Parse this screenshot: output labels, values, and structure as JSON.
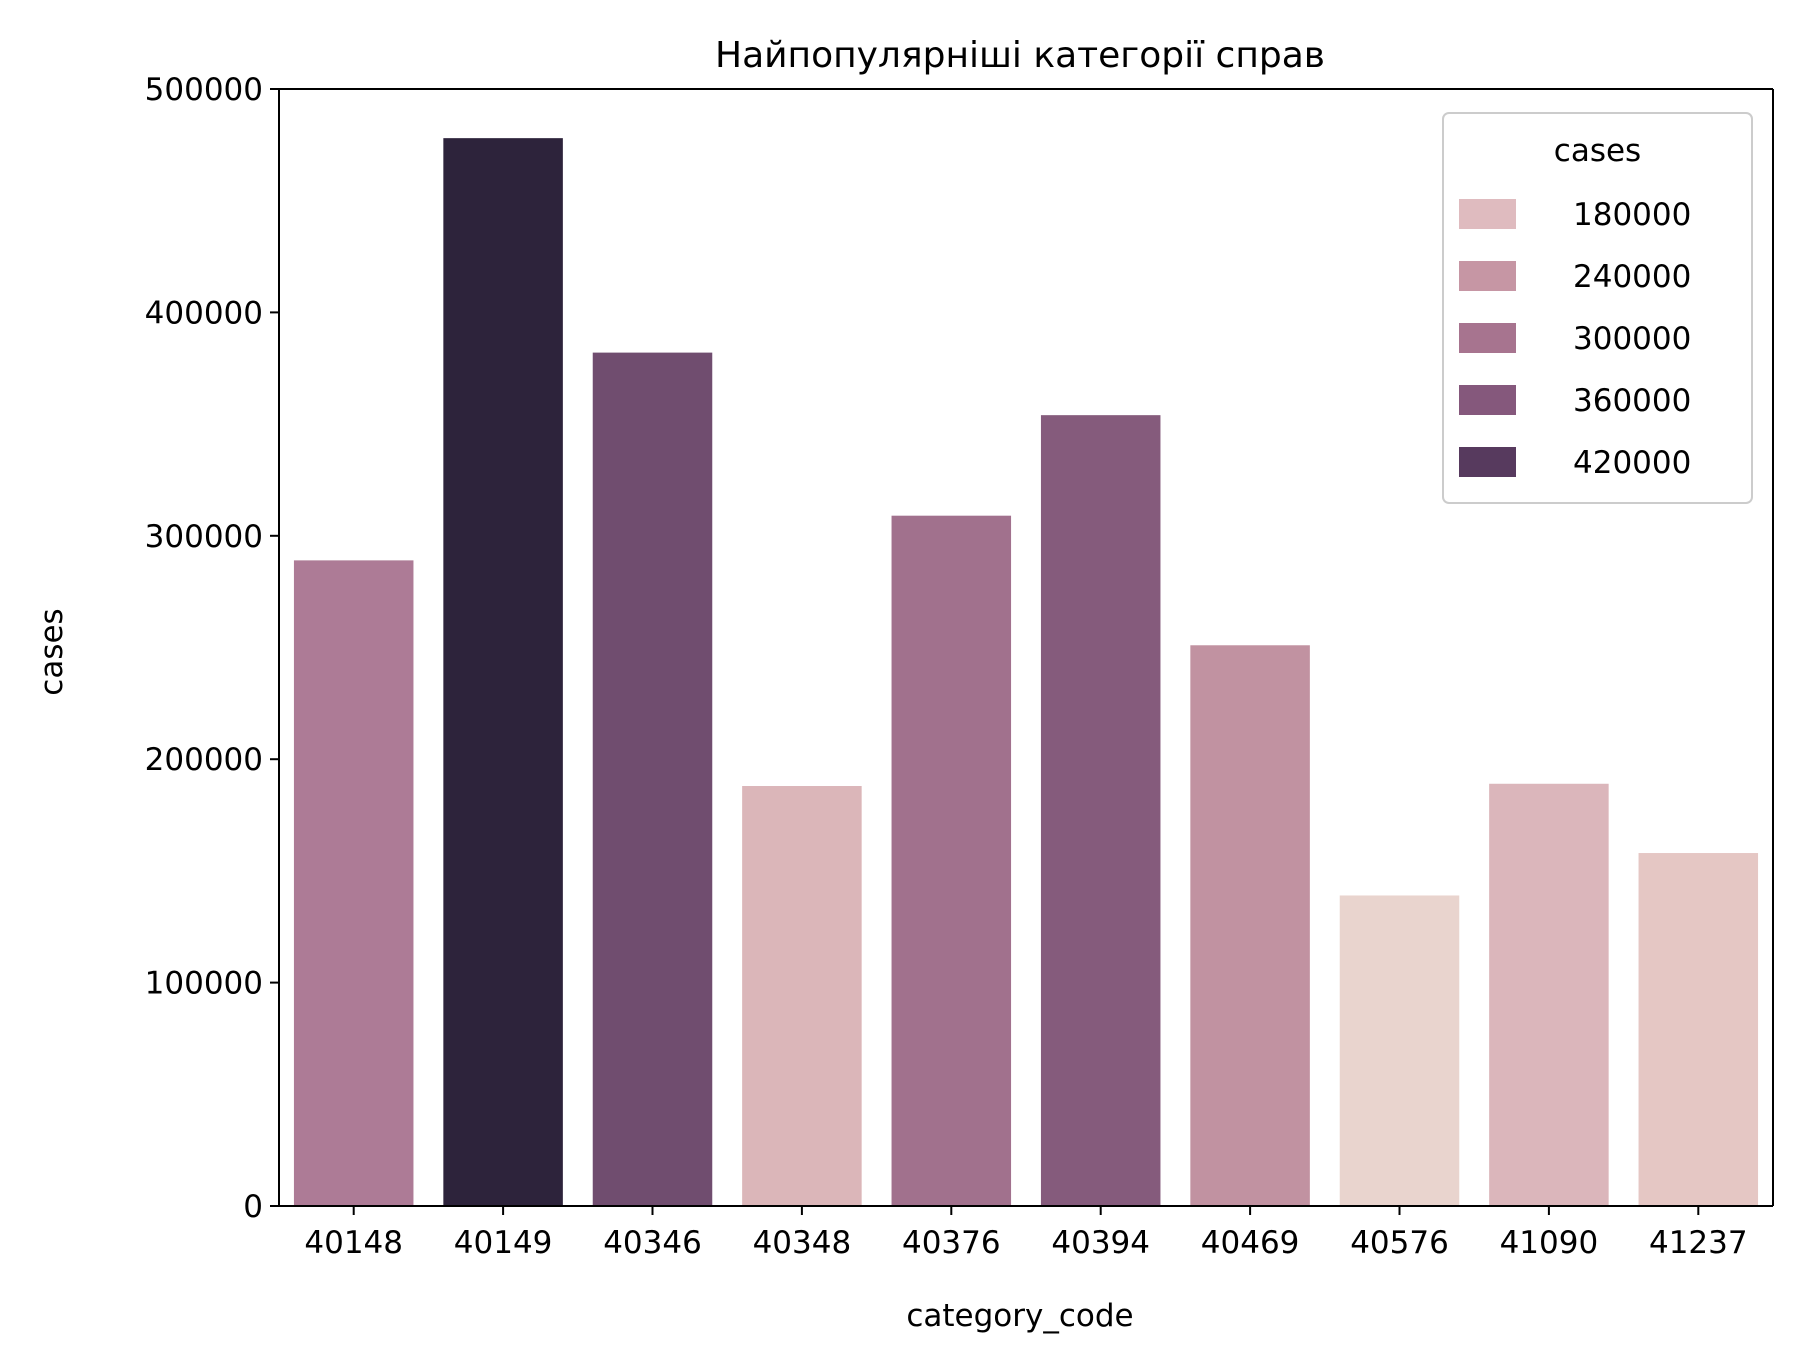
{
  "chart_data": {
    "type": "bar",
    "title": "Найпопулярніші категорії справ",
    "xlabel": "category_code",
    "ylabel": "cases",
    "categories": [
      "40148",
      "40149",
      "40346",
      "40348",
      "40376",
      "40394",
      "40469",
      "40576",
      "41090",
      "41237"
    ],
    "values": [
      289000,
      478000,
      382000,
      188000,
      309000,
      354000,
      251000,
      139000,
      189000,
      158000
    ],
    "ylim": [
      0,
      500000
    ],
    "yticks": [
      0,
      100000,
      200000,
      300000,
      400000,
      500000
    ],
    "ytick_labels": [
      "0",
      "100000",
      "200000",
      "300000",
      "400000",
      "500000"
    ],
    "bar_colors": [
      "#ad7b96",
      "#2d233b",
      "#704d6f",
      "#dbb6b9",
      "#a1718d",
      "#855b7c",
      "#c192a1",
      "#e9d4ce",
      "#dbb6bb",
      "#e5c7c4"
    ],
    "grid": false,
    "legend": {
      "title": "cases",
      "placement": "top-right",
      "entries": [
        {
          "label": "180000",
          "color": "#dfbbbf"
        },
        {
          "label": "240000",
          "color": "#c696a4"
        },
        {
          "label": "300000",
          "color": "#a7748f"
        },
        {
          "label": "360000",
          "color": "#85587c"
        },
        {
          "label": "420000",
          "color": "#573a5e"
        }
      ]
    }
  }
}
